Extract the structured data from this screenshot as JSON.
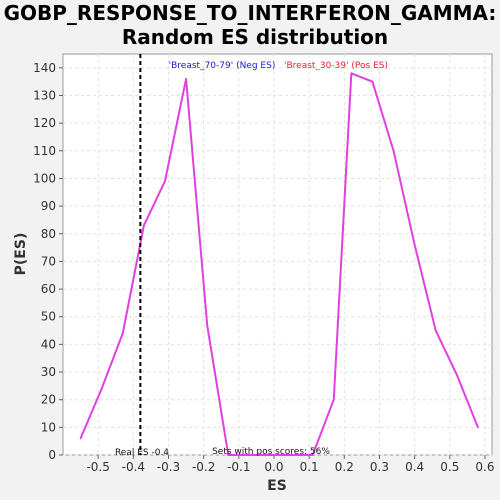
{
  "chart_data": {
    "type": "line",
    "title_line1": "GOBP_RESPONSE_TO_INTERFERON_GAMMA:",
    "title_line2": "Random ES distribution",
    "xlabel": "ES",
    "ylabel": "P(ES)",
    "xlim": [
      -0.6,
      0.62
    ],
    "ylim": [
      0,
      145
    ],
    "xticks": [
      -0.5,
      -0.4,
      -0.3,
      -0.2,
      -0.1,
      0.0,
      0.1,
      0.2,
      0.3,
      0.4,
      0.5,
      0.6
    ],
    "xtick_labels": [
      "-0.5",
      "-0.4",
      "-0.3",
      "-0.2",
      "-0.1",
      "0.0",
      "0.1",
      "0.2",
      "0.3",
      "0.4",
      "0.5",
      "0.6"
    ],
    "yticks": [
      0,
      10,
      20,
      30,
      40,
      50,
      60,
      70,
      80,
      90,
      100,
      110,
      120,
      130,
      140
    ],
    "grid": true,
    "series": [
      {
        "color": "#e040e0",
        "x": [
          -0.55,
          -0.49,
          -0.43,
          -0.37,
          -0.31,
          -0.25,
          -0.19,
          -0.13,
          0.11,
          0.17,
          0.22,
          0.28,
          0.34,
          0.4,
          0.46,
          0.52,
          0.58
        ],
        "y": [
          6,
          24,
          44,
          83,
          99,
          136,
          47,
          0,
          0,
          20,
          138,
          135,
          110,
          76,
          45,
          29,
          10
        ]
      }
    ],
    "real_es": -0.38,
    "annotations": {
      "neg_legend": "'Breast_70-79' (Neg ES)",
      "pos_legend": "'Breast_30-39' (Pos ES)",
      "real_es_label": "Real ES -0.4",
      "pos_scores_label": "Sets with pos scores: 56%"
    },
    "colors": {
      "line": "#e040e0",
      "neg_legend": "#1a1acc",
      "pos_legend": "#e0242a",
      "real_es_line": "#000000",
      "plot_bg": "#ffffff",
      "grid": "#e0e0e0"
    }
  }
}
